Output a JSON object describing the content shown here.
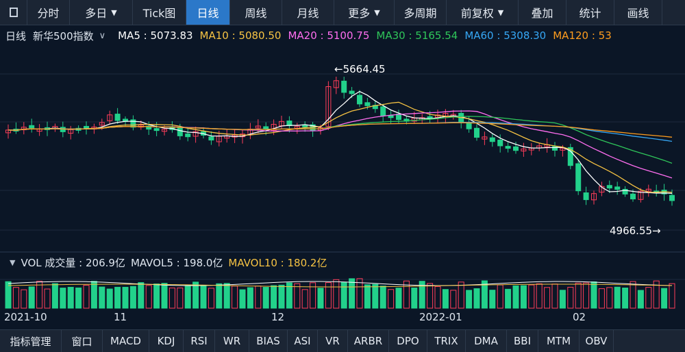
{
  "colors": {
    "up": "#ff3d5a",
    "down": "#22d18b",
    "ma5": "#ffffff",
    "ma10": "#f6c343",
    "ma20": "#ff6ef0",
    "ma30": "#2fc65a",
    "ma60": "#36a7f5",
    "ma120": "#ff9d1e",
    "accent": "#2b78c9"
  },
  "top_tabs": [
    {
      "label": "分时",
      "active": false,
      "caret": false
    },
    {
      "label": "多日",
      "active": false,
      "caret": true
    },
    {
      "label": "Tick图",
      "active": false,
      "caret": false
    },
    {
      "label": "日线",
      "active": true,
      "caret": false
    },
    {
      "label": "周线",
      "active": false,
      "caret": false
    },
    {
      "label": "月线",
      "active": false,
      "caret": false
    },
    {
      "label": "更多",
      "active": false,
      "caret": true
    },
    {
      "label": "多周期",
      "active": false,
      "caret": false
    },
    {
      "label": "前复权",
      "active": false,
      "caret": true
    },
    {
      "label": "叠加",
      "active": false,
      "caret": false
    },
    {
      "label": "统计",
      "active": false,
      "caret": false
    },
    {
      "label": "画线",
      "active": false,
      "caret": false
    }
  ],
  "info": {
    "period": "日线",
    "index_name": "新华500指数",
    "ma": [
      {
        "label": "MA5 : 5073.83",
        "color": "#ffffff"
      },
      {
        "label": "MA10 : 5080.50",
        "color": "#f6c343"
      },
      {
        "label": "MA20 : 5100.75",
        "color": "#ff6ef0"
      },
      {
        "label": "MA30 : 5165.54",
        "color": "#2fc65a"
      },
      {
        "label": "MA60 : 5308.30",
        "color": "#36a7f5"
      },
      {
        "label": "MA120 : 53",
        "color": "#ff9d1e"
      }
    ]
  },
  "volume": {
    "vol_label": "VOL 成交量 : 206.9亿",
    "mavol5_label": "MAVOL5 : 198.0亿",
    "mavol10_label": "MAVOL10 : 180.2亿"
  },
  "annotations": {
    "high": "←5664.45",
    "low": "4966.55→"
  },
  "dates": [
    "2021-10",
    "11",
    "12",
    "2022-01",
    "02"
  ],
  "bottom_tabs": [
    "指标管理",
    "窗口",
    "MACD",
    "KDJ",
    "RSI",
    "WR",
    "BIAS",
    "ASI",
    "VR",
    "ARBR",
    "DPO",
    "TRIX",
    "DMA",
    "BBI",
    "MTM",
    "OBV"
  ]
}
